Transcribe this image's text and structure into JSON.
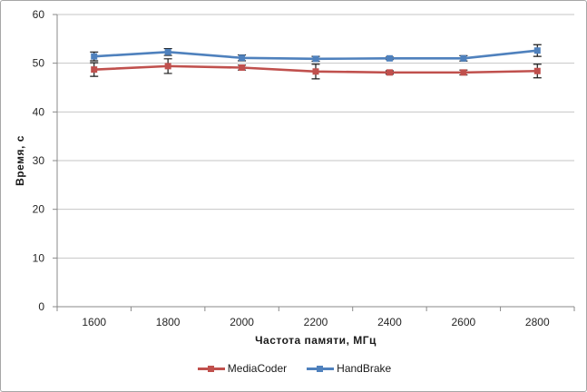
{
  "window": {
    "background": "#ffffff",
    "border_color": "#a6a6a6"
  },
  "chart_data": {
    "type": "line",
    "title": "",
    "xlabel": "Частота  памяти,  МГц",
    "ylabel": "Время, с",
    "categories": [
      "1600",
      "1800",
      "2000",
      "2200",
      "2400",
      "2600",
      "2800"
    ],
    "series": [
      {
        "name": "MediaCoder",
        "color": "#c0504d",
        "values": [
          48.7,
          49.4,
          49.1,
          48.3,
          48.1,
          48.1,
          48.4
        ],
        "error": [
          1.4,
          1.5,
          0.5,
          1.5,
          0.35,
          0.5,
          1.4
        ]
      },
      {
        "name": "HandBrake",
        "color": "#4f81bd",
        "values": [
          51.4,
          52.3,
          51.1,
          50.9,
          51.0,
          51.0,
          52.6
        ],
        "error": [
          0.9,
          0.7,
          0.6,
          0.5,
          0.25,
          0.55,
          1.2
        ]
      }
    ],
    "y_ticks": [
      0,
      10,
      20,
      30,
      40,
      50,
      60
    ],
    "ylim": [
      0,
      60
    ],
    "grid": true,
    "legend_position": "bottom",
    "gridline_color": "#c6c6c6",
    "axis_color": "#898989",
    "error_bar_color": "#1a1a1a",
    "tick_label_color": "#262626"
  }
}
